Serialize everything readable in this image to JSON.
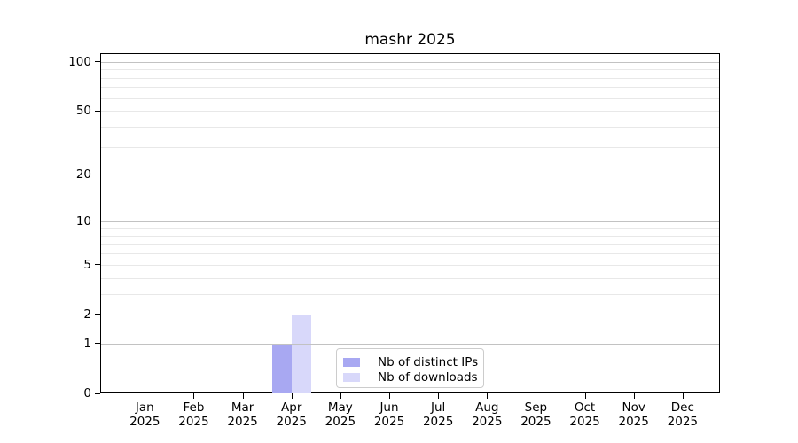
{
  "chart_data": {
    "type": "bar",
    "title": "mashr 2025",
    "categories": [
      "Jan 2025",
      "Feb 2025",
      "Mar 2025",
      "Apr 2025",
      "May 2025",
      "Jun 2025",
      "Jul 2025",
      "Aug 2025",
      "Sep 2025",
      "Oct 2025",
      "Nov 2025",
      "Dec 2025"
    ],
    "series": [
      {
        "name": "Nb of distinct IPs",
        "color": "#a8a8f2",
        "values": [
          0,
          0,
          0,
          1,
          0,
          0,
          0,
          0,
          0,
          0,
          0,
          0
        ]
      },
      {
        "name": "Nb of downloads",
        "color": "#d8d8fa",
        "values": [
          0,
          0,
          0,
          2,
          0,
          0,
          0,
          0,
          0,
          0,
          0,
          0
        ]
      }
    ],
    "y_axis": {
      "scale": "log10(1+y)",
      "ticks": [
        0,
        1,
        2,
        5,
        10,
        20,
        50,
        100
      ],
      "major_gridlines": [
        1,
        10,
        100
      ],
      "minor_gridlines": [
        2,
        3,
        4,
        5,
        6,
        7,
        8,
        9,
        20,
        30,
        40,
        50,
        60,
        70,
        80,
        90
      ],
      "ylim": [
        0,
        113
      ]
    },
    "x_axis": {
      "tick_labels_two_line": true
    },
    "legend": {
      "position": "inside-lower-center",
      "entries": [
        "Nb of distinct IPs",
        "Nb of downloads"
      ]
    },
    "colors": {
      "major_grid": "#c2c2c2",
      "minor_grid": "#e8e8e8",
      "spine": "#000000",
      "text": "#000000",
      "background": "#ffffff"
    }
  }
}
